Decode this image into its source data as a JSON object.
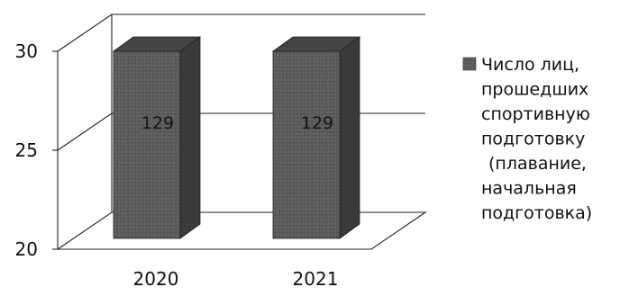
{
  "chart_data": {
    "type": "bar",
    "title": "",
    "xlabel": "",
    "ylabel": "",
    "categories": [
      "2020",
      "2021"
    ],
    "series": [
      {
        "name": "Число лиц, прошедших спортивную подготовку (плавание, начальная подготовка)",
        "legend_lines": [
          "Число лиц,",
          "прошедших",
          "спортивную",
          "подготовку",
          " (плавание,",
          "начальная",
          "подготовка)"
        ],
        "values": [
          129,
          129
        ],
        "data_labels": [
          "129",
          "129"
        ],
        "color": "#5a5a5a"
      }
    ],
    "yticks": [
      "20",
      "25",
      "30"
    ],
    "ylim": [
      20,
      30
    ],
    "grid": true,
    "legend_position": "right",
    "style": "3d"
  }
}
